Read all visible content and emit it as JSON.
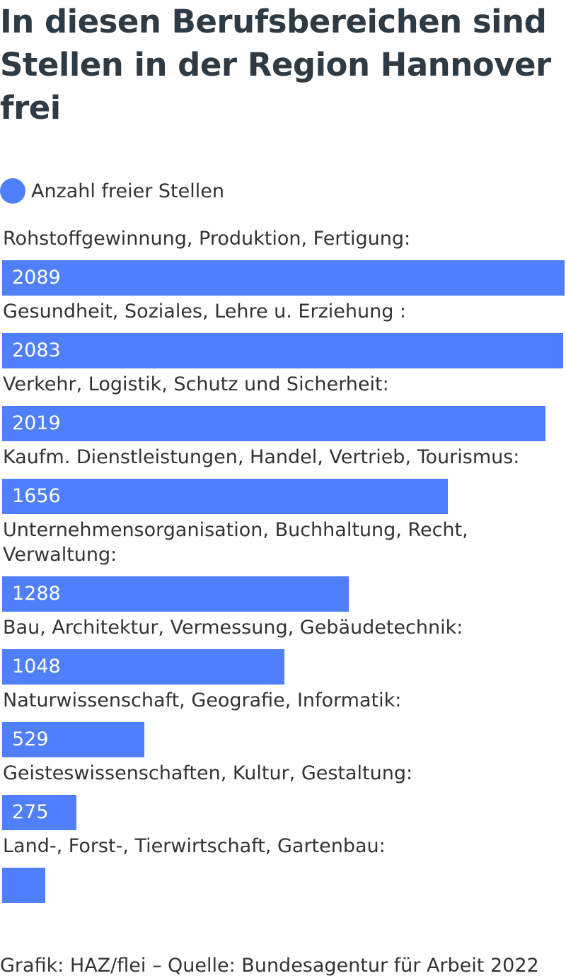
{
  "chart_data": {
    "type": "bar",
    "orientation": "horizontal",
    "title": "In diesen Berufsbereichen sind Stellen in der Region Hannover frei",
    "legend": {
      "placement": "top-left",
      "entries": [
        "Anzahl freier Stellen"
      ]
    },
    "categories": [
      "Rohstoffgewinnung, Produktion, Fertigung:",
      "Gesundheit, Soziales, Lehre u. Erziehung :",
      "Verkehr, Logistik, Schutz und Sicherheit:",
      "Kaufm. Dienstleistungen, Handel, Vertrieb, Tourismus:",
      "Unternehmensorganisation, Buchhaltung, Recht, Verwaltung:",
      "Bau, Architektur, Vermessung, Gebäudetechnik:",
      "Naturwissenschaft, Geografie, Informatik:",
      "Geisteswissenschaften, Kultur, Gestaltung:",
      "Land-, Forst-, Tierwirtschaft, Gartenbau:"
    ],
    "series": [
      {
        "name": "Anzahl freier Stellen",
        "values": [
          2089,
          2083,
          2019,
          1656,
          1288,
          1048,
          529,
          275,
          160
        ],
        "value_labels": [
          "2089",
          "2083",
          "2019",
          "1656",
          "1288",
          "1048",
          "529",
          "275",
          ""
        ]
      }
    ],
    "xlim": [
      0,
      2089
    ],
    "grid": false,
    "color": "#507ffb"
  },
  "footer": "Grafik: HAZ/flei – Quelle: Bundesagentur für Arbeit 2022"
}
